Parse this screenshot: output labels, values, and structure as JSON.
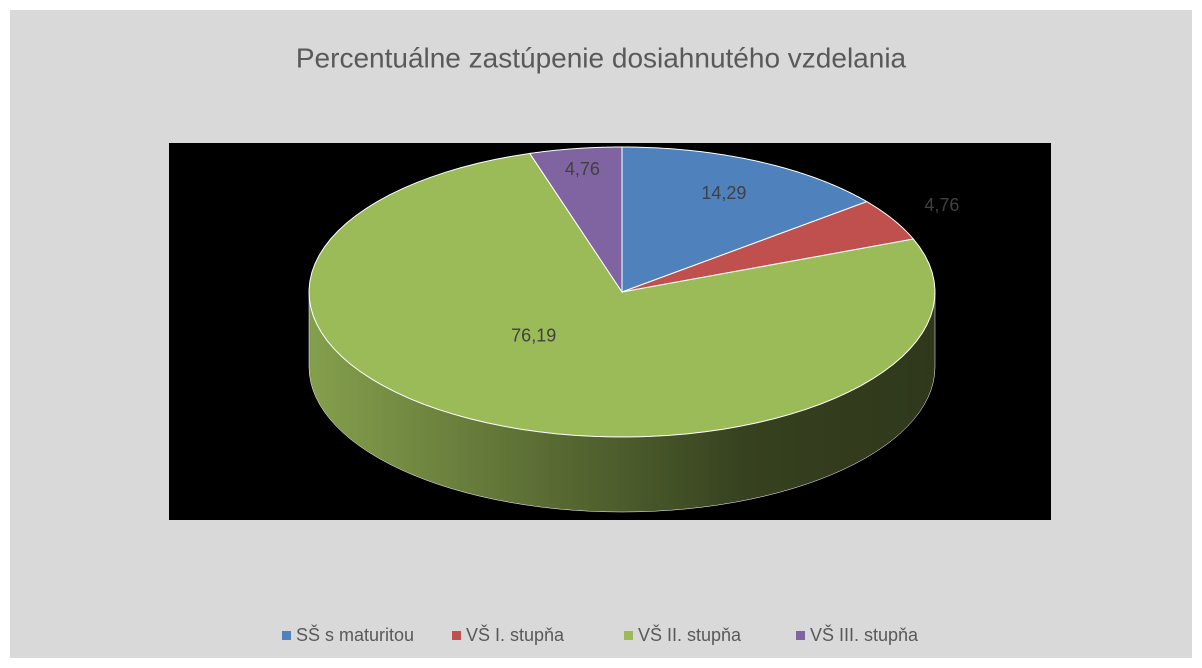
{
  "chart_data": {
    "type": "pie",
    "title": "Percentuálne zastúpenie dosiahnutého vzdelania",
    "categories": [
      "SŠ s maturitou",
      "VŠ I. stupňa",
      "VŠ II. stupňa",
      "VŠ III. stupňa"
    ],
    "values": [
      14.29,
      4.76,
      76.19,
      4.76
    ],
    "value_labels": [
      "14,29",
      "4,76",
      "76,19",
      "4,76"
    ],
    "colors": [
      "#4f81bd",
      "#c0504d",
      "#9bbb59",
      "#8064a2"
    ],
    "legend": "bottom"
  }
}
